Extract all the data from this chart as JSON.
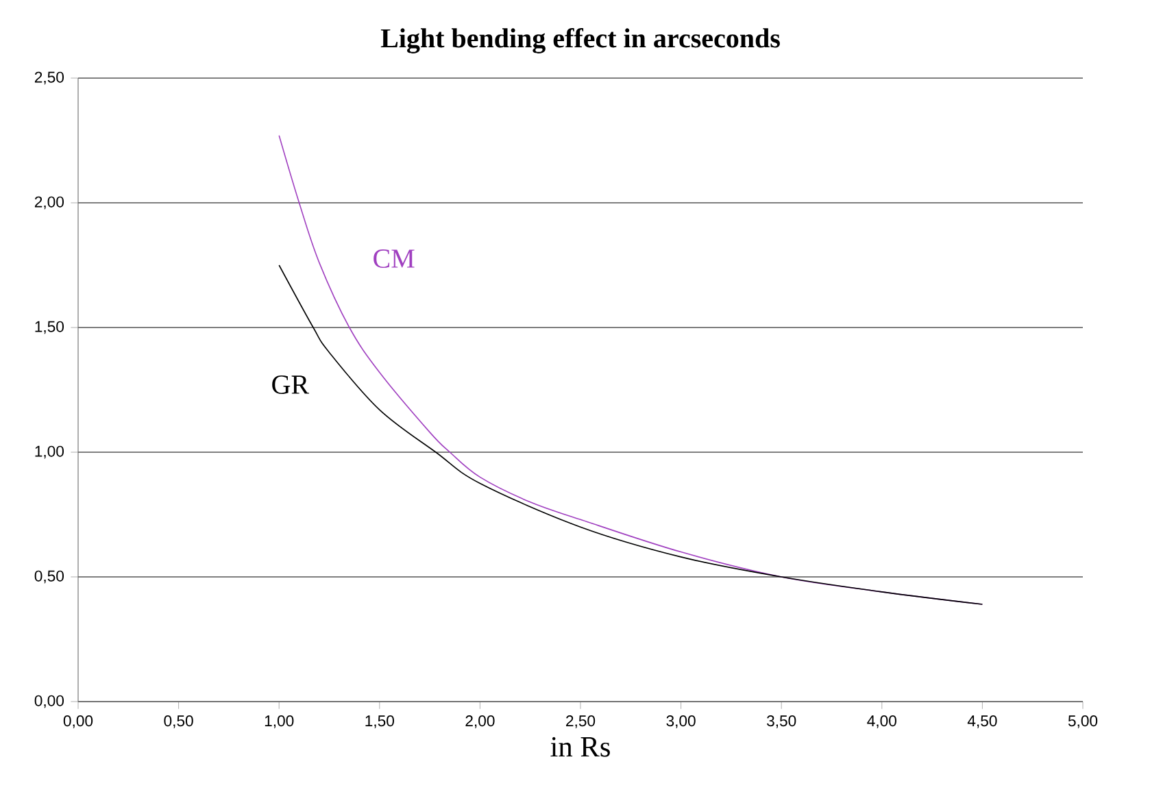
{
  "chart_data": {
    "type": "line",
    "title": "Light bending effect in arcseconds",
    "xlabel": "in Rs",
    "xlim": [
      0,
      5
    ],
    "ylim": [
      0,
      2.5
    ],
    "xticks": [
      {
        "value": 0,
        "label": "0,00"
      },
      {
        "value": 0.5,
        "label": "0,50"
      },
      {
        "value": 1,
        "label": "1,00"
      },
      {
        "value": 1.5,
        "label": "1,50"
      },
      {
        "value": 2,
        "label": "2,00"
      },
      {
        "value": 2.5,
        "label": "2,50"
      },
      {
        "value": 3,
        "label": "3,00"
      },
      {
        "value": 3.5,
        "label": "3,50"
      },
      {
        "value": 4,
        "label": "4,00"
      },
      {
        "value": 4.5,
        "label": "4,50"
      },
      {
        "value": 5,
        "label": "5,00"
      }
    ],
    "yticks": [
      {
        "value": 0,
        "label": "0,00"
      },
      {
        "value": 0.5,
        "label": "0,50"
      },
      {
        "value": 1,
        "label": "1,00"
      },
      {
        "value": 1.5,
        "label": "1,50"
      },
      {
        "value": 2,
        "label": "2,00"
      },
      {
        "value": 2.5,
        "label": "2,50"
      }
    ],
    "grid": "y",
    "legend": false,
    "marker": "none",
    "line_style": "solid",
    "series": [
      {
        "name": "CM",
        "color": "#a040c0",
        "x": [
          1,
          1.1,
          1.2,
          1.35,
          1.5,
          1.75,
          1.85,
          2,
          2.25,
          2.5,
          3,
          3.5,
          4,
          4.5
        ],
        "values": [
          2.27,
          2.0,
          1.76,
          1.5,
          1.32,
          1.08,
          1.0,
          0.9,
          0.8,
          0.73,
          0.6,
          0.5,
          0.44,
          0.39
        ]
      },
      {
        "name": "GR",
        "color": "#000000",
        "x": [
          1,
          1.17,
          1.25,
          1.5,
          1.78,
          2,
          2.5,
          3,
          3.5,
          4,
          4.5
        ],
        "values": [
          1.75,
          1.5,
          1.4,
          1.17,
          1.0,
          0.875,
          0.7,
          0.58,
          0.5,
          0.44,
          0.39
        ]
      }
    ]
  }
}
